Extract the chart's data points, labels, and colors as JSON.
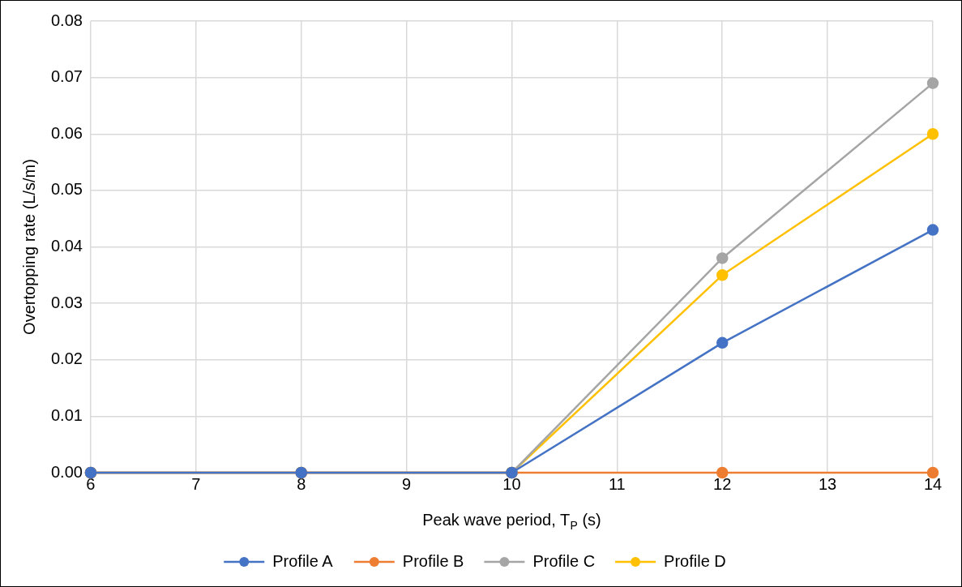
{
  "chart_data": {
    "type": "line",
    "xlabel": "Peak wave period, T$_{P}$ (s)",
    "ylabel": "Overtopping rate (L/s/m)",
    "x": [
      6,
      8,
      10,
      12,
      14
    ],
    "series": [
      {
        "name": "Profile A",
        "color": "#4472c4",
        "values": [
          0,
          0,
          0,
          0.023,
          0.043
        ]
      },
      {
        "name": "Profile B",
        "color": "#ed7d31",
        "values": [
          0,
          0,
          0,
          0,
          0
        ]
      },
      {
        "name": "Profile C",
        "color": "#a5a5a5",
        "values": [
          0,
          0,
          0,
          0.038,
          0.069
        ]
      },
      {
        "name": "Profile D",
        "color": "#ffc000",
        "values": [
          0,
          0,
          0,
          0.035,
          0.06
        ]
      }
    ],
    "xlim": [
      6,
      14
    ],
    "xticks": [
      6,
      7,
      8,
      9,
      10,
      11,
      12,
      13,
      14
    ],
    "ylim": [
      0,
      0.08
    ],
    "yticks": [
      {
        "value": 0,
        "label": "0.00"
      },
      {
        "value": 0.01,
        "label": "0.01"
      },
      {
        "value": 0.02,
        "label": "0.02"
      },
      {
        "value": 0.03,
        "label": "0.03"
      },
      {
        "value": 0.04,
        "label": "0.04"
      },
      {
        "value": 0.05,
        "label": "0.05"
      },
      {
        "value": 0.06,
        "label": "0.06"
      },
      {
        "value": 0.07,
        "label": "0.07"
      },
      {
        "value": 0.08,
        "label": "0.08"
      }
    ],
    "grid": true,
    "legend": "bottom",
    "marker": "circle",
    "line_style": "solid"
  }
}
